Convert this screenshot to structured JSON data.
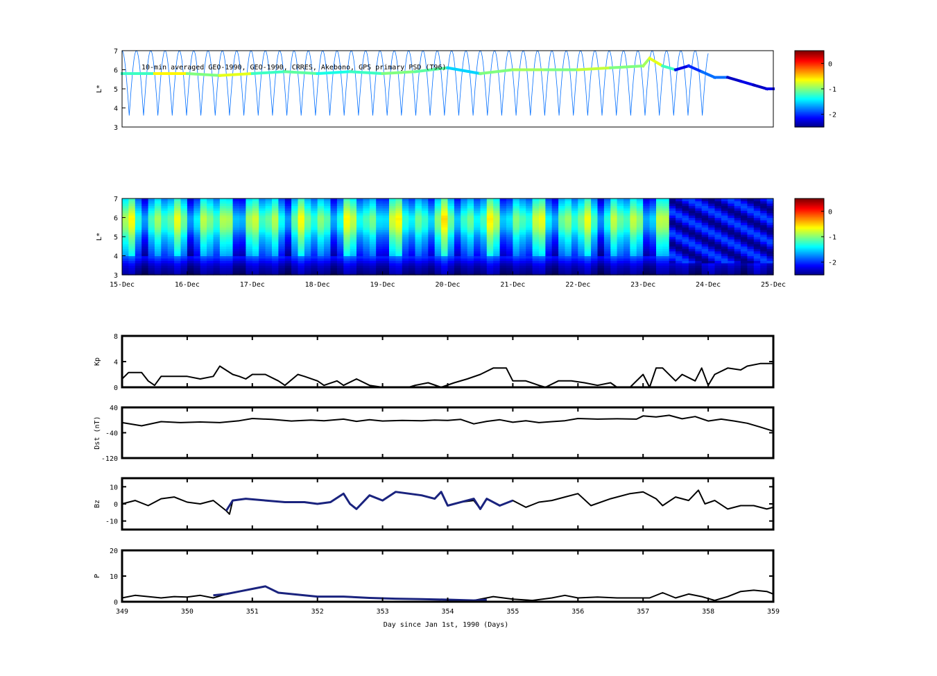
{
  "figure": {
    "panels": [
      {
        "id": "psd_obs",
        "annotation": "10-min averaged GEO-1990, GEO-1990, CRRES, Akebono, GPS  primary PSD (T96)",
        "ylabel": "L*",
        "yticks": [
          "3",
          "4",
          "5",
          "6",
          "7"
        ],
        "colorbar_ticks": [
          "0",
          "-1",
          "-2"
        ]
      },
      {
        "id": "psd_model",
        "ylabel": "L*",
        "yticks": [
          "3",
          "4",
          "5",
          "6",
          "7"
        ],
        "date_ticks": [
          "15-Dec",
          "16-Dec",
          "17-Dec",
          "18-Dec",
          "19-Dec",
          "20-Dec",
          "21-Dec",
          "22-Dec",
          "23-Dec",
          "24-Dec",
          "25-Dec"
        ],
        "colorbar_ticks": [
          "0",
          "-1",
          "-2"
        ]
      }
    ],
    "xlabel": "Day since Jan 1st, 1990 (Days)",
    "day_ticks": [
      "349",
      "350",
      "351",
      "352",
      "353",
      "354",
      "355",
      "356",
      "357",
      "358",
      "359"
    ]
  },
  "chart_data": [
    {
      "type": "heatmap",
      "title": "10-min averaged GEO-1990, GEO-1990, CRRES, Akebono, GPS  primary PSD (T96)",
      "ylabel": "L*",
      "xlim": [
        349,
        359
      ],
      "ylim": [
        3,
        7
      ],
      "clim": [
        -2.5,
        0.5
      ],
      "colormap": "jet",
      "colorbar_ticks": [
        0,
        -1,
        -2
      ],
      "geo_track": {
        "x": [
          349.0,
          349.5,
          350.0,
          350.5,
          351.0,
          351.5,
          352.0,
          352.5,
          353.0,
          353.5,
          354.0,
          354.5,
          355.0,
          355.5,
          356.0,
          356.5,
          357.0,
          357.1,
          357.3,
          357.5,
          357.7,
          357.9,
          358.1,
          358.3,
          358.5,
          358.7,
          358.9,
          359.0
        ],
        "y": [
          5.8,
          5.8,
          5.8,
          5.7,
          5.8,
          5.9,
          5.8,
          5.9,
          5.8,
          5.9,
          6.1,
          5.8,
          6.0,
          6.0,
          6.0,
          6.1,
          6.2,
          6.6,
          6.2,
          6.0,
          6.2,
          5.9,
          5.6,
          5.6,
          5.4,
          5.2,
          5.0,
          5.0
        ],
        "log_psd": [
          -1.2,
          -0.6,
          -1.0,
          -0.7,
          -1.2,
          -1.1,
          -1.3,
          -1.2,
          -1.0,
          -1.1,
          -1.5,
          -1.0,
          -0.9,
          -1.0,
          -0.8,
          -1.0,
          -0.9,
          -0.7,
          -1.2,
          -2.2,
          -2.0,
          -1.8,
          -1.8,
          -2.3,
          -2.2,
          -2.3,
          -2.2,
          -1.8
        ]
      },
      "sampling": {
        "x_start": 349.0,
        "x_end": 358.0,
        "orbit_period_days": 0.22,
        "l_range": [
          3.6,
          7.0
        ],
        "log_psd": -1.8
      }
    },
    {
      "type": "heatmap",
      "ylabel": "L*",
      "xlim": [
        349,
        359
      ],
      "ylim": [
        3,
        7
      ],
      "clim": [
        -2.5,
        0.5
      ],
      "colormap": "jet",
      "colorbar_ticks": [
        0,
        -1,
        -2
      ],
      "x_dates": [
        "15-Dec",
        "16-Dec",
        "17-Dec",
        "18-Dec",
        "19-Dec",
        "20-Dec",
        "21-Dec",
        "22-Dec",
        "23-Dec",
        "24-Dec",
        "25-Dec"
      ],
      "background_log_psd_by_L": [
        {
          "L": 3.0,
          "log_psd": -2.5
        },
        {
          "L": 3.5,
          "log_psd": -2.3
        },
        {
          "L": 4.0,
          "log_psd": -1.9
        },
        {
          "L": 4.5,
          "log_psd": -1.7
        },
        {
          "L": 5.0,
          "log_psd": -1.5
        },
        {
          "L": 5.5,
          "log_psd": -1.2
        },
        {
          "L": 6.0,
          "log_psd": -1.1
        },
        {
          "L": 6.5,
          "log_psd": -1.4
        },
        {
          "L": 7.0,
          "log_psd": -1.7
        }
      ],
      "late_period": {
        "x_start": 357.4,
        "log_psd": -2.2
      }
    },
    {
      "type": "line",
      "ylabel": "Kp",
      "xlim": [
        349,
        359
      ],
      "ylim": [
        0,
        8
      ],
      "yticks": [
        0,
        4,
        8
      ],
      "x": [
        349.0,
        349.1,
        349.3,
        349.4,
        349.5,
        349.6,
        349.8,
        350.0,
        350.2,
        350.4,
        350.5,
        350.7,
        350.8,
        350.9,
        351.0,
        351.2,
        351.4,
        351.5,
        351.7,
        351.8,
        352.0,
        352.1,
        352.3,
        352.4,
        352.6,
        352.8,
        353.0,
        353.2,
        353.4,
        353.5,
        353.7,
        353.9,
        354.1,
        354.3,
        354.5,
        354.7,
        354.9,
        355.0,
        355.2,
        355.4,
        355.5,
        355.7,
        355.9,
        356.1,
        356.3,
        356.5,
        356.6,
        356.8,
        357.0,
        357.1,
        357.2,
        357.3,
        357.5,
        357.6,
        357.8,
        357.9,
        358.0,
        358.1,
        358.3,
        358.5,
        358.6,
        358.8,
        359.0
      ],
      "y": [
        1.3,
        2.3,
        2.3,
        1.0,
        0.3,
        1.7,
        1.7,
        1.7,
        1.3,
        1.7,
        3.3,
        2.0,
        1.7,
        1.3,
        2.0,
        2.0,
        1.0,
        0.3,
        2.0,
        1.7,
        1.0,
        0.3,
        1.0,
        0.3,
        1.3,
        0.3,
        0.0,
        0.0,
        0.0,
        0.3,
        0.7,
        0.0,
        0.7,
        1.3,
        2.0,
        3.0,
        3.0,
        1.0,
        1.0,
        0.3,
        0.0,
        1.0,
        1.0,
        0.7,
        0.3,
        0.7,
        0.0,
        0.0,
        2.0,
        0.0,
        3.0,
        3.0,
        1.0,
        2.0,
        1.0,
        3.0,
        0.3,
        2.0,
        3.0,
        2.7,
        3.3,
        3.7,
        3.7
      ]
    },
    {
      "type": "line",
      "ylabel": "Dst (nT)",
      "xlim": [
        349,
        359
      ],
      "ylim": [
        -120,
        40
      ],
      "yticks": [
        -120,
        -40,
        40
      ],
      "x": [
        349.0,
        349.3,
        349.6,
        349.9,
        350.2,
        350.5,
        350.8,
        351.0,
        351.3,
        351.6,
        351.9,
        352.1,
        352.4,
        352.6,
        352.8,
        353.0,
        353.3,
        353.6,
        353.8,
        354.0,
        354.2,
        354.4,
        354.6,
        354.8,
        355.0,
        355.2,
        355.4,
        355.6,
        355.8,
        356.0,
        356.3,
        356.6,
        356.9,
        357.0,
        357.2,
        357.4,
        357.6,
        357.8,
        358.0,
        358.2,
        358.4,
        358.6,
        358.8,
        359.0
      ],
      "y": [
        -8,
        -18,
        -5,
        -8,
        -6,
        -8,
        -2,
        5,
        2,
        -3,
        0,
        -2,
        3,
        -4,
        1,
        -3,
        -1,
        -2,
        0,
        -1,
        2,
        -12,
        -4,
        1,
        -7,
        -2,
        -8,
        -5,
        -2,
        5,
        3,
        4,
        3,
        13,
        10,
        15,
        4,
        11,
        -3,
        3,
        -3,
        -10,
        -22,
        -35
      ]
    },
    {
      "type": "line",
      "ylabel": "Bz",
      "xlim": [
        349,
        359
      ],
      "ylim": [
        -15,
        15
      ],
      "yticks": [
        -10,
        0,
        10
      ],
      "series": [
        {
          "color": "#000000",
          "x": [
            349.0,
            349.2,
            349.4,
            349.6,
            349.8,
            350.0,
            350.2,
            350.4,
            350.6,
            350.65,
            350.7,
            350.9,
            351.2,
            351.5,
            351.8,
            352.0,
            352.2,
            352.4,
            352.5,
            352.6,
            352.8,
            353.0,
            353.2,
            353.4,
            353.6,
            353.8,
            353.9,
            354.0,
            354.2,
            354.4,
            354.5,
            354.6,
            354.8,
            355.0,
            355.2,
            355.4,
            355.6,
            355.8,
            356.0,
            356.2,
            356.5,
            356.8,
            357.0,
            357.2,
            357.3,
            357.5,
            357.7,
            357.85,
            357.95,
            358.1,
            358.3,
            358.5,
            358.7,
            358.9,
            359.0
          ],
          "y": [
            0,
            2,
            -1,
            3,
            4,
            1,
            0,
            2,
            -4,
            -6,
            2,
            3,
            2,
            1,
            1,
            0,
            1,
            6,
            0,
            -3,
            5,
            2,
            7,
            6,
            5,
            3,
            7,
            -1,
            1,
            2,
            -3,
            3,
            -1,
            2,
            -2,
            1,
            2,
            4,
            6,
            -1,
            3,
            6,
            7,
            3,
            -1,
            4,
            2,
            8,
            0,
            2,
            -3,
            -1,
            -1,
            -3,
            -2
          ]
        },
        {
          "color": "#1a237e",
          "x": [
            350.6,
            350.7,
            350.9,
            351.2,
            351.5,
            351.8,
            352.0,
            352.2,
            352.4,
            352.5,
            352.6,
            352.8,
            353.0,
            353.2,
            353.4,
            353.6,
            353.8,
            353.9,
            354.0,
            354.3,
            354.4,
            354.5,
            354.6,
            354.8,
            355.0
          ],
          "y": [
            -4,
            2,
            3,
            2,
            1,
            1,
            0,
            1,
            6,
            0,
            -3,
            5,
            2,
            7,
            6,
            5,
            3,
            7,
            -1,
            2,
            3,
            -3,
            3,
            -1,
            2
          ]
        }
      ]
    },
    {
      "type": "line",
      "ylabel": "P",
      "xlim": [
        349,
        359
      ],
      "ylim": [
        0,
        20
      ],
      "yticks": [
        0,
        10,
        20
      ],
      "series": [
        {
          "color": "#000000",
          "x": [
            349.0,
            349.2,
            349.4,
            349.6,
            349.8,
            350.0,
            350.2,
            350.4,
            350.6,
            350.8,
            351.0,
            351.2,
            351.4,
            351.6,
            351.8,
            352.0,
            352.4,
            352.8,
            353.2,
            353.6,
            354.0,
            354.4,
            354.7,
            355.0,
            355.3,
            355.6,
            355.8,
            356.0,
            356.3,
            356.6,
            356.9,
            357.1,
            357.3,
            357.5,
            357.7,
            357.9,
            358.1,
            358.3,
            358.5,
            358.7,
            358.9,
            359.0
          ],
          "y": [
            1.5,
            2.5,
            2.0,
            1.5,
            2.0,
            1.8,
            2.5,
            1.5,
            3.0,
            4.0,
            5.0,
            6.0,
            3.5,
            3.0,
            2.5,
            2.0,
            2.0,
            1.5,
            1.2,
            1.0,
            0.8,
            0.5,
            2.0,
            1.0,
            0.5,
            1.5,
            2.5,
            1.5,
            1.8,
            1.5,
            1.5,
            1.5,
            3.5,
            1.5,
            3.0,
            2.0,
            0.5,
            2.0,
            4.0,
            4.5,
            4.0,
            3.0
          ]
        },
        {
          "color": "#1a237e",
          "x": [
            350.4,
            350.6,
            350.8,
            351.0,
            351.2,
            351.4,
            351.6,
            351.8,
            352.0,
            352.4,
            352.8,
            353.2,
            353.6,
            354.0,
            354.4,
            354.6
          ],
          "y": [
            2.5,
            3.0,
            4.0,
            5.0,
            6.0,
            3.5,
            3.0,
            2.5,
            2.0,
            2.0,
            1.5,
            1.2,
            1.0,
            0.8,
            0.5,
            0.8
          ]
        }
      ]
    }
  ]
}
